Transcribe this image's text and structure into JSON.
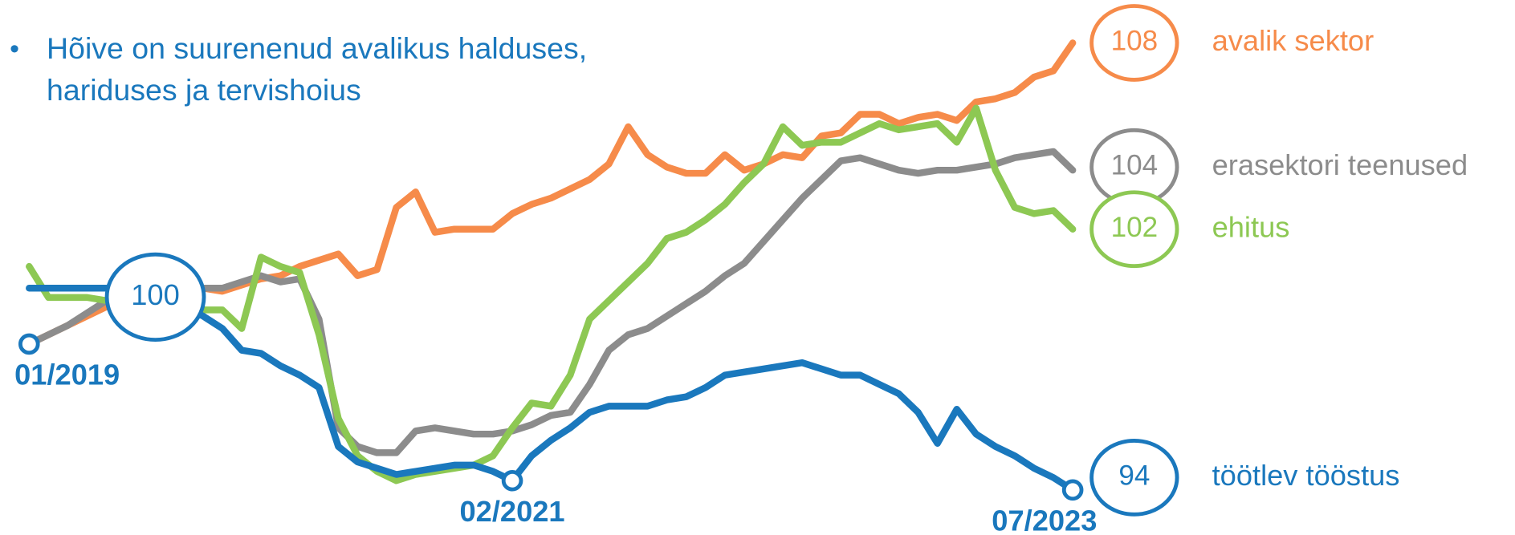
{
  "chart_data": {
    "type": "line",
    "title_lines": [
      "Hõive on suurenenud avalikus halduses,",
      "hariduses ja tervishoius"
    ],
    "categories": [
      "01/2019",
      null,
      null,
      null,
      null,
      null,
      null,
      null,
      null,
      null,
      null,
      null,
      null,
      null,
      null,
      null,
      null,
      null,
      null,
      null,
      null,
      null,
      null,
      null,
      null,
      "02/2021",
      null,
      null,
      null,
      null,
      null,
      null,
      null,
      null,
      null,
      null,
      null,
      null,
      null,
      null,
      null,
      null,
      null,
      null,
      null,
      null,
      null,
      null,
      null,
      null,
      null,
      null,
      null,
      null,
      "07/2023"
    ],
    "ylim": [
      92,
      109.5
    ],
    "index_base": 100,
    "series": [
      {
        "name": "avalik sektor",
        "color": "#f68b4a",
        "end_value": 108,
        "values": [
          98.3,
          98.6,
          98.9,
          99.2,
          99.5,
          99.7,
          99.8,
          100,
          100,
          100.1,
          100,
          100.2,
          100.4,
          100.5,
          100.8,
          101,
          101.2,
          100.5,
          100.7,
          102.7,
          103.2,
          101.9,
          102,
          102,
          102,
          102.5,
          102.8,
          103,
          103.3,
          103.6,
          104.1,
          105.3,
          104.4,
          104,
          103.8,
          103.8,
          104.4,
          103.9,
          104.1,
          104.4,
          104.3,
          105,
          105.1,
          105.7,
          105.7,
          105.4,
          105.6,
          105.7,
          105.5,
          106.1,
          106.2,
          106.4,
          106.9,
          107.1,
          108
        ]
      },
      {
        "name": "erasektori teenused",
        "color": "#8c8c8c",
        "end_value": 104,
        "values": [
          98.3,
          98.6,
          98.9,
          99.3,
          99.7,
          100,
          100.1,
          100.1,
          100.1,
          100.1,
          100.1,
          100.3,
          100.5,
          100.3,
          100.4,
          99.1,
          95.6,
          95,
          94.8,
          94.8,
          95.5,
          95.6,
          95.5,
          95.4,
          95.4,
          95.5,
          95.7,
          96,
          96.1,
          97,
          98.1,
          98.6,
          98.8,
          99.2,
          99.6,
          100,
          100.5,
          100.9,
          101.6,
          102.3,
          103,
          103.6,
          104.2,
          104.3,
          104.1,
          103.9,
          103.8,
          103.9,
          103.9,
          104,
          104.1,
          104.3,
          104.4,
          104.5,
          103.9
        ]
      },
      {
        "name": "ehitus",
        "color": "#8dc853",
        "end_value": 102,
        "values": [
          100.8,
          99.8,
          99.8,
          99.8,
          99.7,
          99.6,
          99.5,
          99.4,
          99.4,
          99.4,
          99.4,
          98.8,
          101.1,
          100.8,
          100.6,
          98.6,
          95.9,
          94.7,
          94.2,
          93.9,
          94.1,
          94.2,
          94.3,
          94.4,
          94.7,
          95.6,
          96.4,
          96.3,
          97.3,
          99.1,
          99.7,
          100.3,
          100.9,
          101.7,
          101.9,
          102.3,
          102.8,
          103.5,
          104.1,
          105.3,
          104.7,
          104.8,
          104.8,
          105.1,
          105.4,
          105.2,
          105.3,
          105.4,
          104.8,
          105.9,
          103.9,
          102.7,
          102.5,
          102.6,
          102
        ]
      },
      {
        "name": "töötlev tööstus",
        "color": "#1a78bd",
        "end_value": 94,
        "values": [
          100.1,
          100.1,
          100.1,
          100.1,
          100.1,
          100,
          99.8,
          99.7,
          99.5,
          99.2,
          98.8,
          98.1,
          98,
          97.6,
          97.3,
          96.9,
          95,
          94.5,
          94.3,
          94.1,
          94.2,
          94.3,
          94.4,
          94.4,
          94.2,
          93.9,
          94.7,
          95.2,
          95.6,
          96.1,
          96.3,
          96.3,
          96.3,
          96.5,
          96.6,
          96.9,
          97.3,
          97.4,
          97.5,
          97.6,
          97.7,
          97.5,
          97.3,
          97.3,
          97,
          96.7,
          96.1,
          95.1,
          96.2,
          95.4,
          95,
          94.7,
          94.3,
          94,
          93.6
        ]
      }
    ]
  }
}
